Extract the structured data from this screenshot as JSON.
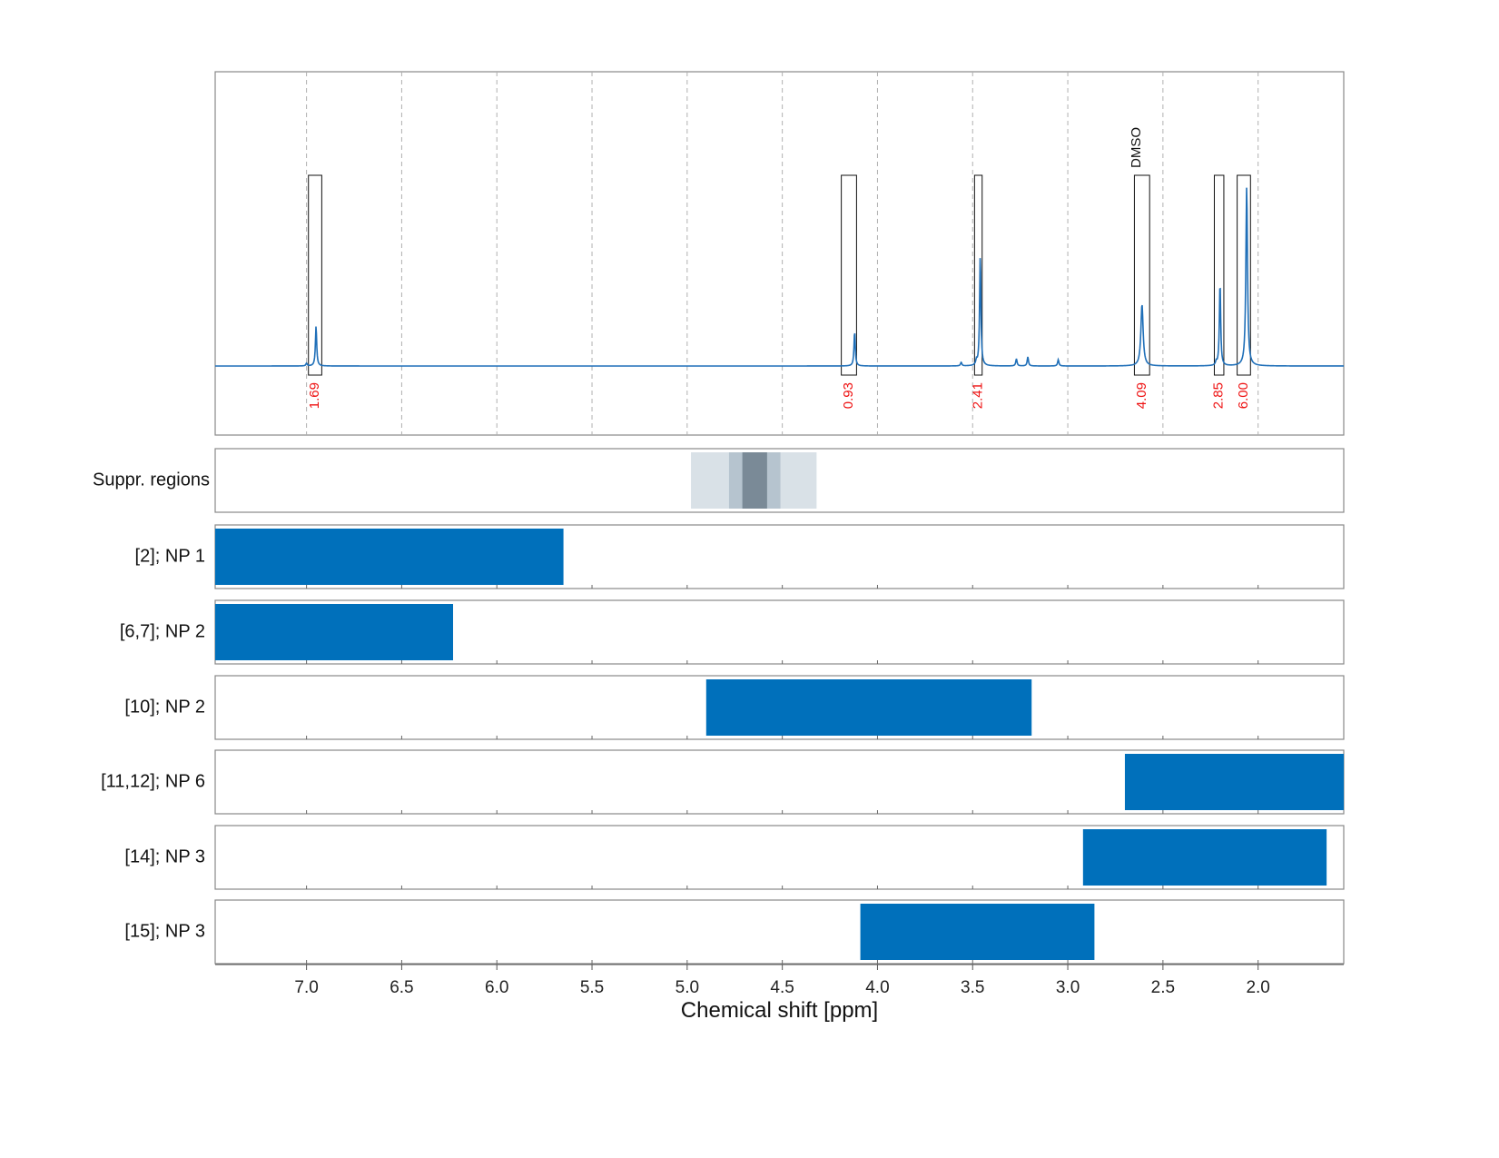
{
  "colors": {
    "spectrum": "#1f6fb8",
    "bar": "#0070bb",
    "integral_label": "#ee1111",
    "supp_outer": "#d9e1e7",
    "supp_mid": "#b6c4cf",
    "supp_inner": "#7a8a97",
    "frame": "#888888",
    "grid": "#b0b0b0"
  },
  "chart_data": {
    "type": "nmr-spectrum-with-range-bars",
    "xlabel": "Chemical shift [ppm]",
    "xlim": [
      7.48,
      1.55
    ],
    "x_reversed": true,
    "x_ticks": [
      "7.0",
      "6.5",
      "6.0",
      "5.5",
      "5.0",
      "4.5",
      "4.0",
      "3.5",
      "3.0",
      "2.5",
      "2.0"
    ],
    "grid": true,
    "spectrum": {
      "baseline": 0,
      "peaks": [
        {
          "x": 6.95,
          "height": 0.22,
          "width": 0.004
        },
        {
          "x": 4.12,
          "height": 0.19,
          "width": 0.004
        },
        {
          "x": 3.46,
          "height": 0.61,
          "width": 0.004
        },
        {
          "x": 2.61,
          "height": 0.34,
          "width": 0.007
        },
        {
          "x": 2.2,
          "height": 0.46,
          "width": 0.004
        },
        {
          "x": 2.06,
          "height": 0.99,
          "width": 0.005
        },
        {
          "x": 7.0,
          "height": 0.015,
          "width": 0.004
        },
        {
          "x": 3.56,
          "height": 0.02,
          "width": 0.004
        },
        {
          "x": 3.48,
          "height": 0.025,
          "width": 0.004
        },
        {
          "x": 3.27,
          "height": 0.04,
          "width": 0.004
        },
        {
          "x": 3.21,
          "height": 0.05,
          "width": 0.004
        },
        {
          "x": 3.05,
          "height": 0.035,
          "width": 0.004
        },
        {
          "x": 2.22,
          "height": 0.02,
          "width": 0.004
        }
      ]
    },
    "integration_regions": [
      {
        "from": 6.99,
        "to": 6.92,
        "label": "1.69"
      },
      {
        "from": 4.19,
        "to": 4.11,
        "label": "0.93"
      },
      {
        "from": 3.49,
        "to": 3.45,
        "label": "2.41"
      },
      {
        "from": 2.65,
        "to": 2.57,
        "label": "4.09"
      },
      {
        "from": 2.23,
        "to": 2.18,
        "label": "2.85"
      },
      {
        "from": 2.11,
        "to": 2.04,
        "label": "6.00"
      }
    ],
    "annotations": [
      {
        "x": 2.61,
        "label": "DMSO"
      }
    ],
    "suppression_regions": {
      "label": "Suppr. regions",
      "bands": [
        {
          "from": 4.98,
          "to": 4.32,
          "level": "outer"
        },
        {
          "from": 4.78,
          "to": 4.51,
          "level": "mid"
        },
        {
          "from": 4.71,
          "to": 4.58,
          "level": "inner"
        }
      ]
    },
    "tracks": [
      {
        "label": "[2]; NP 1",
        "from": 7.48,
        "to": 5.65
      },
      {
        "label": "[6,7]; NP 2",
        "from": 7.48,
        "to": 6.23
      },
      {
        "label": "[10]; NP 2",
        "from": 4.9,
        "to": 3.19
      },
      {
        "label": "[11,12]; NP 6",
        "from": 2.7,
        "to": 1.55
      },
      {
        "label": "[14]; NP 3",
        "from": 2.92,
        "to": 1.64
      },
      {
        "label": "[15]; NP 3",
        "from": 4.09,
        "to": 2.86
      }
    ]
  }
}
